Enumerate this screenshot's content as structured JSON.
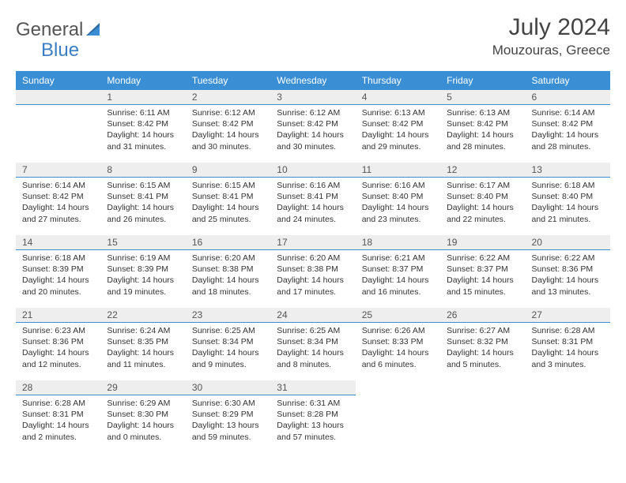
{
  "logo": {
    "general": "General",
    "blue": "Blue"
  },
  "header": {
    "title": "July 2024",
    "location": "Mouzouras, Greece"
  },
  "colors": {
    "header_bg": "#3a8fd4",
    "header_text": "#ffffff",
    "daynum_bg": "#eeeeee",
    "daynum_border": "#3a8fd4",
    "logo_blue": "#3a7fc4",
    "body_text": "#333333"
  },
  "weekdays": [
    "Sunday",
    "Monday",
    "Tuesday",
    "Wednesday",
    "Thursday",
    "Friday",
    "Saturday"
  ],
  "weeks": [
    [
      null,
      {
        "n": "1",
        "sr": "Sunrise: 6:11 AM",
        "ss": "Sunset: 8:42 PM",
        "d1": "Daylight: 14 hours",
        "d2": "and 31 minutes."
      },
      {
        "n": "2",
        "sr": "Sunrise: 6:12 AM",
        "ss": "Sunset: 8:42 PM",
        "d1": "Daylight: 14 hours",
        "d2": "and 30 minutes."
      },
      {
        "n": "3",
        "sr": "Sunrise: 6:12 AM",
        "ss": "Sunset: 8:42 PM",
        "d1": "Daylight: 14 hours",
        "d2": "and 30 minutes."
      },
      {
        "n": "4",
        "sr": "Sunrise: 6:13 AM",
        "ss": "Sunset: 8:42 PM",
        "d1": "Daylight: 14 hours",
        "d2": "and 29 minutes."
      },
      {
        "n": "5",
        "sr": "Sunrise: 6:13 AM",
        "ss": "Sunset: 8:42 PM",
        "d1": "Daylight: 14 hours",
        "d2": "and 28 minutes."
      },
      {
        "n": "6",
        "sr": "Sunrise: 6:14 AM",
        "ss": "Sunset: 8:42 PM",
        "d1": "Daylight: 14 hours",
        "d2": "and 28 minutes."
      }
    ],
    [
      {
        "n": "7",
        "sr": "Sunrise: 6:14 AM",
        "ss": "Sunset: 8:42 PM",
        "d1": "Daylight: 14 hours",
        "d2": "and 27 minutes."
      },
      {
        "n": "8",
        "sr": "Sunrise: 6:15 AM",
        "ss": "Sunset: 8:41 PM",
        "d1": "Daylight: 14 hours",
        "d2": "and 26 minutes."
      },
      {
        "n": "9",
        "sr": "Sunrise: 6:15 AM",
        "ss": "Sunset: 8:41 PM",
        "d1": "Daylight: 14 hours",
        "d2": "and 25 minutes."
      },
      {
        "n": "10",
        "sr": "Sunrise: 6:16 AM",
        "ss": "Sunset: 8:41 PM",
        "d1": "Daylight: 14 hours",
        "d2": "and 24 minutes."
      },
      {
        "n": "11",
        "sr": "Sunrise: 6:16 AM",
        "ss": "Sunset: 8:40 PM",
        "d1": "Daylight: 14 hours",
        "d2": "and 23 minutes."
      },
      {
        "n": "12",
        "sr": "Sunrise: 6:17 AM",
        "ss": "Sunset: 8:40 PM",
        "d1": "Daylight: 14 hours",
        "d2": "and 22 minutes."
      },
      {
        "n": "13",
        "sr": "Sunrise: 6:18 AM",
        "ss": "Sunset: 8:40 PM",
        "d1": "Daylight: 14 hours",
        "d2": "and 21 minutes."
      }
    ],
    [
      {
        "n": "14",
        "sr": "Sunrise: 6:18 AM",
        "ss": "Sunset: 8:39 PM",
        "d1": "Daylight: 14 hours",
        "d2": "and 20 minutes."
      },
      {
        "n": "15",
        "sr": "Sunrise: 6:19 AM",
        "ss": "Sunset: 8:39 PM",
        "d1": "Daylight: 14 hours",
        "d2": "and 19 minutes."
      },
      {
        "n": "16",
        "sr": "Sunrise: 6:20 AM",
        "ss": "Sunset: 8:38 PM",
        "d1": "Daylight: 14 hours",
        "d2": "and 18 minutes."
      },
      {
        "n": "17",
        "sr": "Sunrise: 6:20 AM",
        "ss": "Sunset: 8:38 PM",
        "d1": "Daylight: 14 hours",
        "d2": "and 17 minutes."
      },
      {
        "n": "18",
        "sr": "Sunrise: 6:21 AM",
        "ss": "Sunset: 8:37 PM",
        "d1": "Daylight: 14 hours",
        "d2": "and 16 minutes."
      },
      {
        "n": "19",
        "sr": "Sunrise: 6:22 AM",
        "ss": "Sunset: 8:37 PM",
        "d1": "Daylight: 14 hours",
        "d2": "and 15 minutes."
      },
      {
        "n": "20",
        "sr": "Sunrise: 6:22 AM",
        "ss": "Sunset: 8:36 PM",
        "d1": "Daylight: 14 hours",
        "d2": "and 13 minutes."
      }
    ],
    [
      {
        "n": "21",
        "sr": "Sunrise: 6:23 AM",
        "ss": "Sunset: 8:36 PM",
        "d1": "Daylight: 14 hours",
        "d2": "and 12 minutes."
      },
      {
        "n": "22",
        "sr": "Sunrise: 6:24 AM",
        "ss": "Sunset: 8:35 PM",
        "d1": "Daylight: 14 hours",
        "d2": "and 11 minutes."
      },
      {
        "n": "23",
        "sr": "Sunrise: 6:25 AM",
        "ss": "Sunset: 8:34 PM",
        "d1": "Daylight: 14 hours",
        "d2": "and 9 minutes."
      },
      {
        "n": "24",
        "sr": "Sunrise: 6:25 AM",
        "ss": "Sunset: 8:34 PM",
        "d1": "Daylight: 14 hours",
        "d2": "and 8 minutes."
      },
      {
        "n": "25",
        "sr": "Sunrise: 6:26 AM",
        "ss": "Sunset: 8:33 PM",
        "d1": "Daylight: 14 hours",
        "d2": "and 6 minutes."
      },
      {
        "n": "26",
        "sr": "Sunrise: 6:27 AM",
        "ss": "Sunset: 8:32 PM",
        "d1": "Daylight: 14 hours",
        "d2": "and 5 minutes."
      },
      {
        "n": "27",
        "sr": "Sunrise: 6:28 AM",
        "ss": "Sunset: 8:31 PM",
        "d1": "Daylight: 14 hours",
        "d2": "and 3 minutes."
      }
    ],
    [
      {
        "n": "28",
        "sr": "Sunrise: 6:28 AM",
        "ss": "Sunset: 8:31 PM",
        "d1": "Daylight: 14 hours",
        "d2": "and 2 minutes."
      },
      {
        "n": "29",
        "sr": "Sunrise: 6:29 AM",
        "ss": "Sunset: 8:30 PM",
        "d1": "Daylight: 14 hours",
        "d2": "and 0 minutes."
      },
      {
        "n": "30",
        "sr": "Sunrise: 6:30 AM",
        "ss": "Sunset: 8:29 PM",
        "d1": "Daylight: 13 hours",
        "d2": "and 59 minutes."
      },
      {
        "n": "31",
        "sr": "Sunrise: 6:31 AM",
        "ss": "Sunset: 8:28 PM",
        "d1": "Daylight: 13 hours",
        "d2": "and 57 minutes."
      },
      null,
      null,
      null
    ]
  ]
}
